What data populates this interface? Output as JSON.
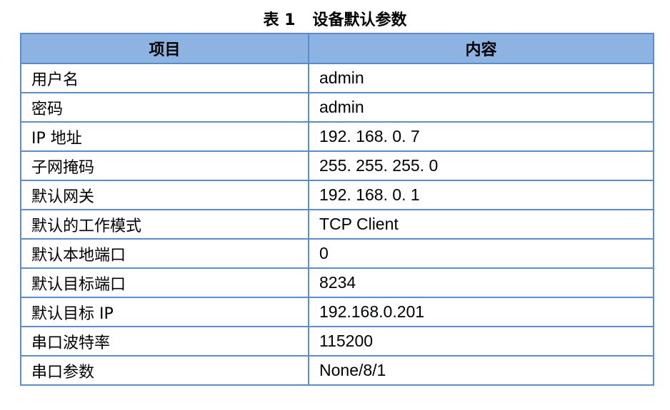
{
  "caption": {
    "label": "表 1",
    "title": "设备默认参数"
  },
  "table": {
    "headers": [
      "项目",
      "内容"
    ],
    "rows": [
      [
        "用户名",
        "admin"
      ],
      [
        "密码",
        "admin"
      ],
      [
        "IP 地址",
        "192. 168. 0. 7"
      ],
      [
        "子网掩码",
        "255. 255. 255. 0"
      ],
      [
        "默认网关",
        "192. 168. 0. 1"
      ],
      [
        "默认的工作模式",
        "TCP  Client"
      ],
      [
        "默认本地端口",
        "0"
      ],
      [
        "默认目标端口",
        "8234"
      ],
      [
        "默认目标 IP",
        "192.168.0.201"
      ],
      [
        "串口波特率",
        "115200"
      ],
      [
        "串口参数",
        "None/8/1"
      ]
    ]
  },
  "colors": {
    "header_fill": "#8db3e2",
    "border": "#5b8bc8"
  }
}
